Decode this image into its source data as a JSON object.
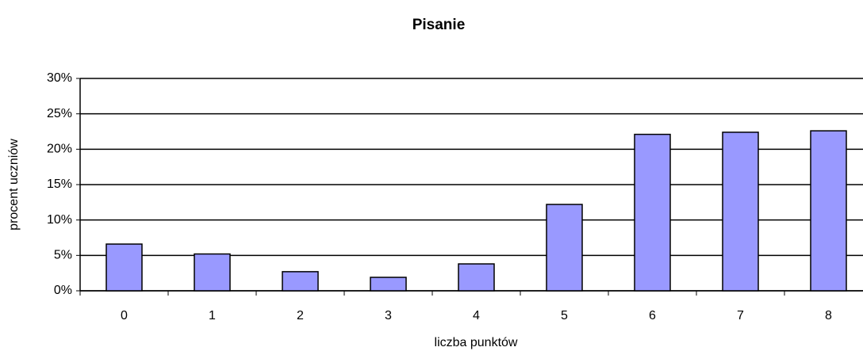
{
  "chart_data": {
    "type": "bar",
    "title": "Pisanie",
    "x_label": "liczba punktów",
    "y_label": "procent uczniów",
    "categories": [
      "0",
      "1",
      "2",
      "3",
      "4",
      "5",
      "6",
      "7",
      "8"
    ],
    "values": [
      6.6,
      5.2,
      2.7,
      1.9,
      3.8,
      12.2,
      22.1,
      22.4,
      22.6
    ],
    "color": "#9999ff",
    "ylim": [
      0,
      30
    ],
    "yticks": [
      {
        "value": 0,
        "label": "0%"
      },
      {
        "value": 5,
        "label": "5%"
      },
      {
        "value": 10,
        "label": "10%"
      },
      {
        "value": 15,
        "label": "15%"
      },
      {
        "value": 20,
        "label": "20%"
      },
      {
        "value": 25,
        "label": "25%"
      },
      {
        "value": 30,
        "label": "30%"
      }
    ],
    "grid": true
  }
}
